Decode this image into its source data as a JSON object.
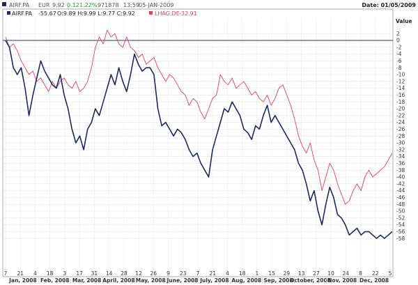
{
  "header": {
    "ticker": "AIRF.PA",
    "currency": "EUR",
    "last": "9.92",
    "change": "0.12",
    "change_pct": "1.22%",
    "volume": "971878",
    "time": "13:59",
    "date": "05-JAN-2009",
    "date_label": "Date: 01/05/2009"
  },
  "legend": [
    {
      "label": "AIRF.PA",
      "value": "-55.67",
      "ohlc": "O:9.89 H:9.99 L:9.77 C:9.92",
      "color": "#1a2a5e"
    },
    {
      "label": "LHAG.DE",
      "value": "-32.91",
      "ohlc": "",
      "color": "#d9455f"
    }
  ],
  "chart_data": {
    "type": "line",
    "ylabel": "Value",
    "ylim": [
      -59,
      4
    ],
    "y_ticks": [
      2,
      0,
      -2,
      -4,
      -6,
      -8,
      -10,
      -12,
      -14,
      -16,
      -18,
      -20,
      -22,
      -24,
      -26,
      -28,
      -30,
      -32,
      -34,
      -36,
      -38,
      -40,
      -42,
      -44,
      -46,
      -48,
      -50,
      -52,
      -54,
      -56,
      -58
    ],
    "x_tick_labels": [
      "7",
      "21",
      "4",
      "18",
      "3",
      "17",
      "31",
      "14",
      "28",
      "12",
      "26",
      "9",
      "23",
      "7",
      "21",
      "4",
      "18",
      "1",
      "15",
      "29",
      "13",
      "27",
      "10",
      "24",
      "8",
      "22",
      "5"
    ],
    "months": [
      "Jan, 2008",
      "Feb, 2008",
      "Mar, 2008",
      "April, 2008",
      "May, 2008",
      "June, 2008",
      "July, 2008",
      "Aug, 2008",
      "Sep, 2008",
      "October, 2008",
      "Nov, 2008",
      "Dec, 2008"
    ],
    "reference_line": 0,
    "grid": true,
    "series": [
      {
        "name": "AIRF.PA",
        "color": "#1a2a5e",
        "points": [
          [
            0,
            0
          ],
          [
            1,
            -2
          ],
          [
            2,
            -8
          ],
          [
            3,
            -10
          ],
          [
            4,
            -8
          ],
          [
            5,
            -14
          ],
          [
            6,
            -22
          ],
          [
            7,
            -16
          ],
          [
            8,
            -11
          ],
          [
            9,
            -6
          ],
          [
            10,
            -9
          ],
          [
            11,
            -11
          ],
          [
            12,
            -13
          ],
          [
            13,
            -14
          ],
          [
            14,
            -10
          ],
          [
            15,
            -16
          ],
          [
            16,
            -20
          ],
          [
            17,
            -26
          ],
          [
            18,
            -30
          ],
          [
            19,
            -28
          ],
          [
            20,
            -32
          ],
          [
            21,
            -26
          ],
          [
            22,
            -24
          ],
          [
            23,
            -20
          ],
          [
            24,
            -22
          ],
          [
            25,
            -18
          ],
          [
            26,
            -14
          ],
          [
            27,
            -10
          ],
          [
            28,
            -13
          ],
          [
            29,
            -8
          ],
          [
            30,
            -12
          ],
          [
            31,
            -15
          ],
          [
            32,
            -10
          ],
          [
            33,
            -4
          ],
          [
            34,
            -7
          ],
          [
            35,
            -9
          ],
          [
            36,
            -8
          ],
          [
            37,
            -8
          ],
          [
            38,
            -10
          ],
          [
            39,
            -20
          ],
          [
            40,
            -25
          ],
          [
            41,
            -24
          ],
          [
            42,
            -26
          ],
          [
            43,
            -28
          ],
          [
            44,
            -26
          ],
          [
            45,
            -27
          ],
          [
            46,
            -29
          ],
          [
            47,
            -32
          ],
          [
            48,
            -34
          ],
          [
            49,
            -33
          ],
          [
            50,
            -36
          ],
          [
            51,
            -38
          ],
          [
            52,
            -40
          ],
          [
            53,
            -32
          ],
          [
            54,
            -28
          ],
          [
            55,
            -24
          ],
          [
            56,
            -20
          ],
          [
            57,
            -21
          ],
          [
            58,
            -18
          ],
          [
            59,
            -20
          ],
          [
            60,
            -22
          ],
          [
            61,
            -26
          ],
          [
            62,
            -27
          ],
          [
            63,
            -29
          ],
          [
            64,
            -25
          ],
          [
            65,
            -26
          ],
          [
            66,
            -22
          ],
          [
            67,
            -19
          ],
          [
            68,
            -24
          ],
          [
            69,
            -22
          ],
          [
            70,
            -24
          ],
          [
            71,
            -26
          ],
          [
            72,
            -28
          ],
          [
            73,
            -30
          ],
          [
            74,
            -32
          ],
          [
            75,
            -36
          ],
          [
            76,
            -38
          ],
          [
            77,
            -42
          ],
          [
            78,
            -47
          ],
          [
            79,
            -44
          ],
          [
            80,
            -50
          ],
          [
            81,
            -54
          ],
          [
            82,
            -48
          ],
          [
            83,
            -43
          ],
          [
            84,
            -46
          ],
          [
            85,
            -51
          ],
          [
            86,
            -52
          ],
          [
            87,
            -54
          ],
          [
            88,
            -57
          ],
          [
            89,
            -56
          ],
          [
            90,
            -55
          ],
          [
            91,
            -57
          ],
          [
            92,
            -56
          ],
          [
            93,
            -56
          ],
          [
            94,
            -57
          ],
          [
            95,
            -58
          ],
          [
            96,
            -57
          ],
          [
            97,
            -58
          ],
          [
            98,
            -57
          ],
          [
            99,
            -56
          ]
        ]
      },
      {
        "name": "LHAG.DE",
        "color": "#d9455f",
        "points": [
          [
            0,
            1
          ],
          [
            1,
            -2
          ],
          [
            2,
            -1
          ],
          [
            3,
            -3
          ],
          [
            4,
            -6
          ],
          [
            5,
            -8
          ],
          [
            6,
            -10
          ],
          [
            7,
            -9
          ],
          [
            8,
            -12
          ],
          [
            9,
            -11
          ],
          [
            10,
            -13
          ],
          [
            11,
            -15
          ],
          [
            12,
            -12
          ],
          [
            13,
            -14
          ],
          [
            14,
            -12
          ],
          [
            15,
            -11
          ],
          [
            16,
            -13
          ],
          [
            17,
            -14
          ],
          [
            18,
            -12
          ],
          [
            19,
            -15
          ],
          [
            20,
            -14
          ],
          [
            21,
            -12
          ],
          [
            22,
            -8
          ],
          [
            23,
            -2
          ],
          [
            24,
            1
          ],
          [
            25,
            -1
          ],
          [
            26,
            3
          ],
          [
            27,
            1
          ],
          [
            28,
            2
          ],
          [
            29,
            -1
          ],
          [
            30,
            -2
          ],
          [
            31,
            1
          ],
          [
            32,
            -2
          ],
          [
            33,
            -3
          ],
          [
            34,
            -5
          ],
          [
            35,
            -4
          ],
          [
            36,
            -7
          ],
          [
            37,
            -6
          ],
          [
            38,
            -5
          ],
          [
            39,
            -8
          ],
          [
            40,
            -10
          ],
          [
            41,
            -12
          ],
          [
            42,
            -10
          ],
          [
            43,
            -11
          ],
          [
            44,
            -13
          ],
          [
            45,
            -15
          ],
          [
            46,
            -16
          ],
          [
            47,
            -19
          ],
          [
            48,
            -17
          ],
          [
            49,
            -18
          ],
          [
            50,
            -21
          ],
          [
            51,
            -23
          ],
          [
            52,
            -20
          ],
          [
            53,
            -17
          ],
          [
            54,
            -16
          ],
          [
            55,
            -10
          ],
          [
            56,
            -12
          ],
          [
            57,
            -13
          ],
          [
            58,
            -11
          ],
          [
            59,
            -14
          ],
          [
            60,
            -13
          ],
          [
            61,
            -12
          ],
          [
            62,
            -14
          ],
          [
            63,
            -16
          ],
          [
            64,
            -15
          ],
          [
            65,
            -17
          ],
          [
            66,
            -18
          ],
          [
            67,
            -16
          ],
          [
            68,
            -19
          ],
          [
            69,
            -17
          ],
          [
            70,
            -14
          ],
          [
            71,
            -13
          ],
          [
            72,
            -16
          ],
          [
            73,
            -19
          ],
          [
            74,
            -23
          ],
          [
            75,
            -28
          ],
          [
            76,
            -31
          ],
          [
            77,
            -33
          ],
          [
            78,
            -30
          ],
          [
            79,
            -35
          ],
          [
            80,
            -38
          ],
          [
            81,
            -44
          ],
          [
            82,
            -40
          ],
          [
            83,
            -36
          ],
          [
            84,
            -38
          ],
          [
            85,
            -42
          ],
          [
            86,
            -45
          ],
          [
            87,
            -48
          ],
          [
            88,
            -47
          ],
          [
            89,
            -44
          ],
          [
            90,
            -42
          ],
          [
            91,
            -44
          ],
          [
            92,
            -40
          ],
          [
            93,
            -38
          ],
          [
            94,
            -40
          ],
          [
            95,
            -39
          ],
          [
            96,
            -38
          ],
          [
            97,
            -37
          ],
          [
            98,
            -35
          ],
          [
            99,
            -33
          ]
        ]
      }
    ]
  }
}
